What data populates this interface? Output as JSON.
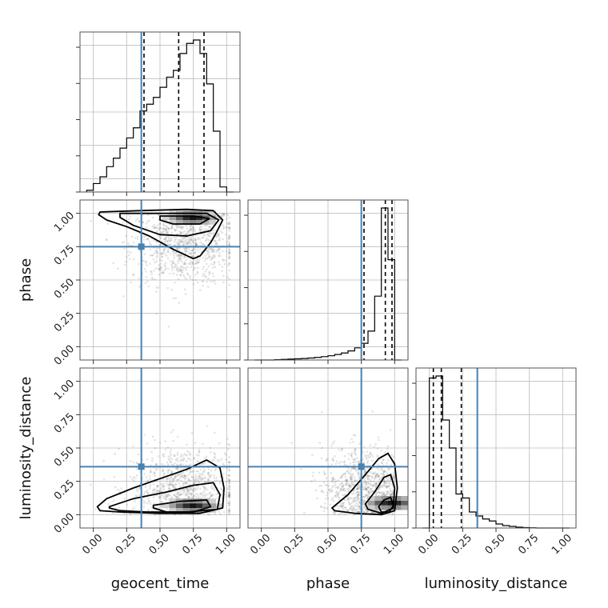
{
  "chart_data": {
    "type": "corner",
    "parameters": [
      "geocent_time",
      "phase",
      "luminosity_distance"
    ],
    "axis_range": [
      -0.1,
      1.1
    ],
    "ticks": [
      0.0,
      0.25,
      0.5,
      0.75,
      1.0
    ],
    "tick_labels": [
      "0.00",
      "0.25",
      "0.50",
      "0.75",
      "1.00"
    ],
    "grid": true,
    "truths": {
      "geocent_time": 0.36,
      "phase": 0.75,
      "luminosity_distance": 0.36
    },
    "truth_color": "#4682b4",
    "quantiles": {
      "geocent_time": [
        0.38,
        0.64,
        0.83
      ],
      "phase": [
        0.77,
        0.93,
        0.98
      ],
      "luminosity_distance": [
        0.03,
        0.09,
        0.24
      ]
    },
    "histograms": {
      "geocent_time": {
        "bin_edges": [
          -0.05,
          0.0,
          0.05,
          0.1,
          0.15,
          0.2,
          0.25,
          0.3,
          0.35,
          0.4,
          0.45,
          0.5,
          0.55,
          0.6,
          0.65,
          0.7,
          0.75,
          0.8,
          0.85,
          0.9,
          0.95,
          1.0,
          1.05
        ],
        "counts": [
          0.5,
          2.5,
          4.5,
          7.5,
          10,
          13,
          16,
          19,
          24,
          26,
          28,
          31,
          34,
          36,
          41,
          44,
          45,
          41,
          32,
          18,
          1.5,
          0
        ]
      },
      "phase": {
        "bin_edges": [
          -0.05,
          0.0,
          0.05,
          0.1,
          0.15,
          0.2,
          0.25,
          0.3,
          0.35,
          0.4,
          0.45,
          0.5,
          0.55,
          0.6,
          0.65,
          0.7,
          0.75,
          0.8,
          0.85,
          0.9,
          0.95,
          1.0,
          1.05
        ],
        "counts": [
          0,
          0,
          0,
          0.2,
          0.4,
          0.6,
          0.8,
          1,
          1.3,
          1.7,
          2.2,
          2.8,
          3.6,
          4.6,
          6,
          8,
          11,
          19,
          42,
          100,
          66,
          0
        ]
      },
      "luminosity_distance": {
        "bin_edges": [
          -0.05,
          0.0,
          0.05,
          0.1,
          0.15,
          0.2,
          0.25,
          0.3,
          0.35,
          0.4,
          0.45,
          0.5,
          0.55,
          0.6,
          0.65,
          0.7,
          0.75,
          0.8,
          0.85,
          0.9,
          0.95,
          1.0,
          1.05
        ],
        "counts": [
          0,
          75,
          76,
          54,
          40,
          17,
          15,
          8,
          6,
          4.5,
          3.5,
          2,
          1.2,
          0.8,
          0.4,
          0.2,
          0.1,
          0,
          0,
          0,
          0,
          0
        ]
      }
    },
    "pairs": [
      {
        "x": "geocent_time",
        "y": "phase",
        "scatter": {
          "x_mean": 0.68,
          "x_sd": 0.2,
          "y_mean": 0.74,
          "y_sd": 0.17,
          "y_skew": "toward_high"
        },
        "density_peak": [
          0.72,
          0.95
        ],
        "contours": [
          [
            [
              0.05,
              1.01
            ],
            [
              0.35,
              1.02
            ],
            [
              0.7,
              1.03
            ],
            [
              0.9,
              1.02
            ],
            [
              0.97,
              0.95
            ],
            [
              0.92,
              0.85
            ],
            [
              0.88,
              0.78
            ],
            [
              0.8,
              0.68
            ],
            [
              0.75,
              0.66
            ],
            [
              0.6,
              0.73
            ],
            [
              0.42,
              0.83
            ],
            [
              0.25,
              0.9
            ],
            [
              0.1,
              0.95
            ],
            [
              0.04,
              0.99
            ]
          ],
          [
            [
              0.2,
              1.0
            ],
            [
              0.5,
              1.0
            ],
            [
              0.85,
              1.0
            ],
            [
              0.94,
              0.95
            ],
            [
              0.88,
              0.87
            ],
            [
              0.7,
              0.83
            ],
            [
              0.5,
              0.84
            ],
            [
              0.3,
              0.91
            ],
            [
              0.2,
              0.97
            ]
          ],
          [
            [
              0.5,
              0.98
            ],
            [
              0.75,
              0.98
            ],
            [
              0.87,
              0.96
            ],
            [
              0.8,
              0.92
            ],
            [
              0.6,
              0.92
            ],
            [
              0.5,
              0.95
            ]
          ]
        ]
      },
      {
        "x": "geocent_time",
        "y": "luminosity_distance",
        "scatter": {
          "x_mean": 0.68,
          "x_sd": 0.2,
          "y_mean": 0.2,
          "y_sd": 0.16,
          "y_skew": "toward_low"
        },
        "density_peak": [
          0.72,
          0.05
        ],
        "contours": [
          [
            [
              0.03,
              0.06
            ],
            [
              0.1,
              0.12
            ],
            [
              0.3,
              0.2
            ],
            [
              0.5,
              0.27
            ],
            [
              0.7,
              0.34
            ],
            [
              0.85,
              0.41
            ],
            [
              0.95,
              0.35
            ],
            [
              0.98,
              0.2
            ],
            [
              0.97,
              0.05
            ],
            [
              0.8,
              0.01
            ],
            [
              0.5,
              0.01
            ],
            [
              0.2,
              0.02
            ],
            [
              0.05,
              0.03
            ]
          ],
          [
            [
              0.12,
              0.06
            ],
            [
              0.3,
              0.12
            ],
            [
              0.55,
              0.17
            ],
            [
              0.75,
              0.22
            ],
            [
              0.9,
              0.24
            ],
            [
              0.95,
              0.15
            ],
            [
              0.93,
              0.04
            ],
            [
              0.7,
              0.02
            ],
            [
              0.4,
              0.02
            ],
            [
              0.2,
              0.03
            ],
            [
              0.12,
              0.05
            ]
          ],
          [
            [
              0.45,
              0.07
            ],
            [
              0.65,
              0.1
            ],
            [
              0.85,
              0.11
            ],
            [
              0.88,
              0.06
            ],
            [
              0.75,
              0.02
            ],
            [
              0.55,
              0.02
            ],
            [
              0.45,
              0.05
            ]
          ]
        ]
      },
      {
        "x": "phase",
        "y": "luminosity_distance",
        "scatter": {
          "x_mean": 0.75,
          "x_sd": 0.18,
          "y_mean": 0.2,
          "y_sd": 0.16,
          "x_skew": "toward_high",
          "y_skew": "toward_low"
        },
        "density_peak": [
          0.95,
          0.07
        ],
        "contours": [
          [
            [
              0.53,
              0.05
            ],
            [
              0.65,
              0.15
            ],
            [
              0.78,
              0.3
            ],
            [
              0.88,
              0.42
            ],
            [
              0.95,
              0.46
            ],
            [
              1.0,
              0.38
            ],
            [
              1.02,
              0.2
            ],
            [
              1.0,
              0.03
            ],
            [
              0.9,
              0.0
            ],
            [
              0.7,
              0.01
            ],
            [
              0.55,
              0.03
            ]
          ],
          [
            [
              0.78,
              0.08
            ],
            [
              0.85,
              0.17
            ],
            [
              0.92,
              0.28
            ],
            [
              0.97,
              0.3
            ],
            [
              1.0,
              0.2
            ],
            [
              0.99,
              0.05
            ],
            [
              0.9,
              0.01
            ],
            [
              0.8,
              0.04
            ]
          ],
          [
            [
              0.88,
              0.06
            ],
            [
              0.92,
              0.11
            ],
            [
              0.97,
              0.13
            ],
            [
              0.99,
              0.07
            ],
            [
              0.96,
              0.02
            ],
            [
              0.9,
              0.02
            ]
          ]
        ]
      }
    ]
  }
}
